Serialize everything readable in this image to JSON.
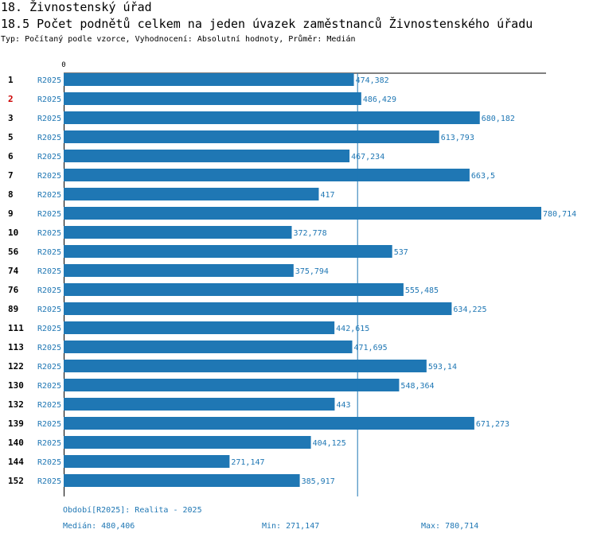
{
  "header": {
    "title": "18. Živnostenský úřad",
    "subtitle": "18.5 Počet podnětů celkem na jeden úvazek zaměstnanců Živnostenského úřadu",
    "type_line": "Typ: Počítaný podle vzorce, Vyhodnocení: Absolutní hodnoty, Průměr: Medián"
  },
  "footer": {
    "period": "Období[R2025]: Realita - 2025",
    "median": "Medián: 480,406",
    "min": "Min: 271,147",
    "max": "Max: 780,714"
  },
  "colors": {
    "bar": "#1f77b4",
    "label": "#1f77b4",
    "highlight": "#cc0000",
    "axis": "#000000"
  },
  "chart_data": {
    "type": "bar",
    "orientation": "horizontal",
    "xlim": [
      0,
      780.714
    ],
    "axis_zero_label": "0",
    "median": 480.406,
    "series_name": "R2025",
    "highlight_category": "2",
    "categories": [
      "1",
      "2",
      "3",
      "5",
      "6",
      "7",
      "8",
      "9",
      "10",
      "56",
      "74",
      "76",
      "89",
      "111",
      "113",
      "122",
      "130",
      "132",
      "139",
      "140",
      "144",
      "152"
    ],
    "values": [
      474.382,
      486.429,
      680.182,
      613.793,
      467.234,
      663.5,
      417,
      780.714,
      372.778,
      537,
      375.794,
      555.485,
      634.225,
      442.615,
      471.695,
      593.14,
      548.364,
      443,
      671.273,
      404.125,
      271.147,
      385.917
    ],
    "value_labels": [
      "474,382",
      "486,429",
      "680,182",
      "613,793",
      "467,234",
      "663,5",
      "417",
      "780,714",
      "372,778",
      "537",
      "375,794",
      "555,485",
      "634,225",
      "442,615",
      "471,695",
      "593,14",
      "548,364",
      "443",
      "671,273",
      "404,125",
      "271,147",
      "385,917"
    ]
  }
}
